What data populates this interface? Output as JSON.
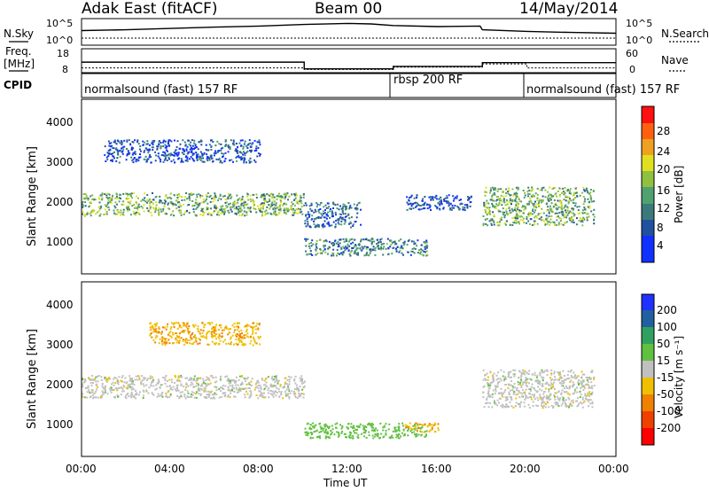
{
  "header": {
    "title": "Adak East (fitACF)",
    "beam": "Beam 00",
    "date": "14/May/2014"
  },
  "noise_panel": {
    "left_label": "N.Sky",
    "right_label": "N.Search",
    "tick_top": "10^5",
    "tick_bottom": "10^0",
    "sky_series": [
      {
        "t": 0,
        "v": 0.55
      },
      {
        "t": 2,
        "v": 0.58
      },
      {
        "t": 4,
        "v": 0.63
      },
      {
        "t": 6,
        "v": 0.68
      },
      {
        "t": 8,
        "v": 0.72
      },
      {
        "t": 10,
        "v": 0.78
      },
      {
        "t": 12,
        "v": 0.82
      },
      {
        "t": 13,
        "v": 0.8
      },
      {
        "t": 14,
        "v": 0.74
      },
      {
        "t": 16,
        "v": 0.7
      },
      {
        "t": 17.9,
        "v": 0.72
      },
      {
        "t": 18,
        "v": 0.58
      },
      {
        "t": 20,
        "v": 0.52
      },
      {
        "t": 22,
        "v": 0.48
      },
      {
        "t": 24,
        "v": 0.45
      }
    ]
  },
  "freq_panel": {
    "left_label_line1": "Freq.",
    "left_label_line2": "[MHz]",
    "right_label": "Nave",
    "left_ticks": [
      "18",
      "8"
    ],
    "right_ticks": [
      "60",
      "0"
    ],
    "freq_series": [
      {
        "t": 0,
        "v": 12.4
      },
      {
        "t": 10,
        "v": 12.4
      },
      {
        "t": 10,
        "v": 9.6
      },
      {
        "t": 14,
        "v": 9.6
      },
      {
        "t": 14,
        "v": 10.6
      },
      {
        "t": 18,
        "v": 10.6
      },
      {
        "t": 18,
        "v": 12.2
      },
      {
        "t": 24,
        "v": 12.2
      }
    ],
    "nave_series": [
      {
        "t": 0,
        "v": 12
      },
      {
        "t": 10,
        "v": 12
      },
      {
        "t": 10,
        "v": 8
      },
      {
        "t": 14,
        "v": 8
      },
      {
        "t": 14,
        "v": 14
      },
      {
        "t": 18,
        "v": 14
      },
      {
        "t": 18,
        "v": 22
      },
      {
        "t": 20,
        "v": 22
      },
      {
        "t": 20,
        "v": 12
      },
      {
        "t": 24,
        "v": 12
      }
    ]
  },
  "cpid_panel": {
    "label": "CPID",
    "segments": [
      {
        "start": 0,
        "end": 14,
        "text": "normalsound (fast) 157 RF"
      },
      {
        "start": 14,
        "end": 20,
        "text": "rbsp 200 RF"
      },
      {
        "start": 20,
        "end": 24,
        "text": "normalsound (fast) 157 RF"
      }
    ]
  },
  "power_panel": {
    "ylabel": "Slant Range [km]",
    "colorbar_label": "Power [dB]",
    "colorbar_ticks": [
      "4",
      "8",
      "12",
      "16",
      "20",
      "24",
      "28"
    ],
    "colorbar_colors": [
      "#1030ff",
      "#2050a0",
      "#3a7a7a",
      "#50a070",
      "#90c040",
      "#e0e020",
      "#f0a020",
      "#ff6010",
      "#ff1010"
    ]
  },
  "velocity_panel": {
    "ylabel": "Slant Range [km]",
    "colorbar_label": "Velocity [m s⁻¹]",
    "colorbar_ticks": [
      "200",
      "100",
      "50",
      "15",
      "-15",
      "-50",
      "-100",
      "-200"
    ],
    "colorbar_colors": [
      "#2030ff",
      "#2060a0",
      "#30a060",
      "#60c040",
      "#c0c0c0",
      "#f0c000",
      "#f08000",
      "#f04000",
      "#ff0000"
    ]
  },
  "axes": {
    "y_ticks": [
      "1000",
      "2000",
      "3000",
      "4000"
    ],
    "y_range": [
      0,
      4600
    ],
    "x_ticks": [
      "00:00",
      "04:00",
      "08:00",
      "12:00",
      "16:00",
      "20:00",
      "00:00"
    ],
    "x_range_hours": [
      0,
      24
    ],
    "xlabel": "Time UT"
  },
  "chart_data": {
    "type": "heatmap",
    "title": "Adak East (fitACF)",
    "xlabel": "Time UT",
    "ylabel": "Slant Range [km]",
    "x_range_hours": [
      0,
      24
    ],
    "ylim": [
      0,
      4600
    ],
    "power_bands": [
      {
        "t0": 0,
        "t1": 10,
        "r_lo": 1550,
        "r_hi": 2150,
        "power_db": 14
      },
      {
        "t0": 1,
        "t1": 8,
        "r_lo": 2950,
        "r_hi": 3550,
        "power_db": 6
      },
      {
        "t0": 10,
        "t1": 12.5,
        "r_lo": 1250,
        "r_hi": 1900,
        "power_db": 8
      },
      {
        "t0": 10,
        "t1": 15.5,
        "r_lo": 500,
        "r_hi": 950,
        "power_db": 10
      },
      {
        "t0": 14.5,
        "t1": 17.5,
        "r_lo": 1700,
        "r_hi": 2100,
        "power_db": 6
      },
      {
        "t0": 18,
        "t1": 23,
        "r_lo": 1300,
        "r_hi": 2300,
        "power_db": 14
      }
    ],
    "velocity_bands": [
      {
        "t0": 0,
        "t1": 10,
        "r_lo": 1550,
        "r_hi": 2150,
        "velocity": 0
      },
      {
        "t0": 3,
        "t1": 8,
        "r_lo": 2950,
        "r_hi": 3550,
        "velocity": -30
      },
      {
        "t0": 10,
        "t1": 15.5,
        "r_lo": 500,
        "r_hi": 900,
        "velocity": 40
      },
      {
        "t0": 14.5,
        "t1": 16,
        "r_lo": 650,
        "r_hi": 900,
        "velocity": -60
      },
      {
        "t0": 18,
        "t1": 23,
        "r_lo": 1300,
        "r_hi": 2300,
        "velocity": 0
      }
    ]
  }
}
